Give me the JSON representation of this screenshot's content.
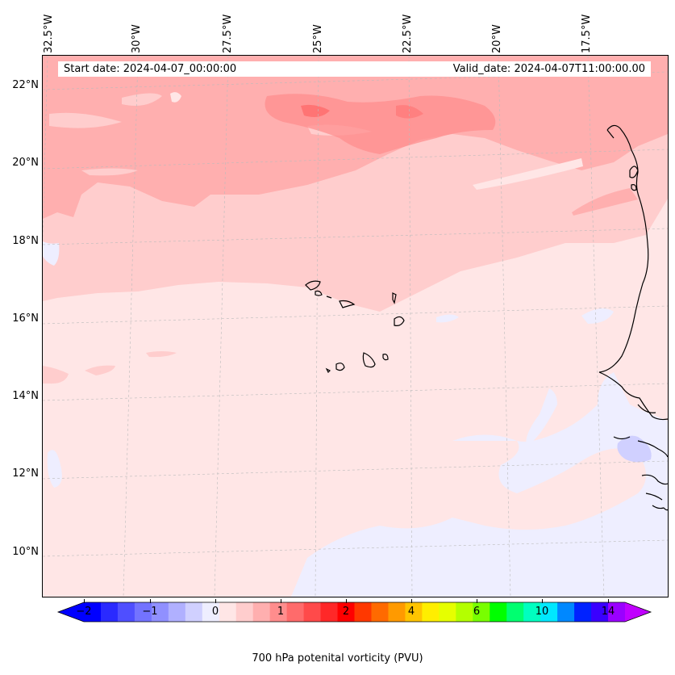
{
  "header": {
    "start_date": "Start date: 2024-04-07_00:00:00",
    "valid_date": "Valid_date: 2024-04-07T11:00:00.00"
  },
  "axes": {
    "lon_labels": [
      "32.5°W",
      "30°W",
      "27.5°W",
      "25°W",
      "22.5°W",
      "20°W",
      "17.5°W"
    ],
    "lat_labels": [
      "22°N",
      "20°N",
      "18°N",
      "16°N",
      "14°N",
      "12°N",
      "10°N"
    ]
  },
  "colorbar": {
    "title": "700 hPa potenital vorticity (PVU)",
    "tick_labels": [
      "−2",
      "−1",
      "0",
      "1",
      "2",
      "4",
      "6",
      "10",
      "14"
    ],
    "colors": [
      "#0000ff",
      "#2a2aff",
      "#4f4fff",
      "#7373ff",
      "#9090ff",
      "#b0b0ff",
      "#d0d0ff",
      "#eeeeff",
      "#ffe6e6",
      "#ffcdcd",
      "#ffafaf",
      "#ff8d8d",
      "#ff6b6b",
      "#ff4a4a",
      "#ff2828",
      "#ff0000",
      "#ff3800",
      "#ff6a00",
      "#ff9a00",
      "#ffc400",
      "#ffee00",
      "#e6ff00",
      "#b4ff00",
      "#78ff00",
      "#00ff00",
      "#00ff70",
      "#00ffc0",
      "#00e8ff",
      "#0088ff",
      "#0022ff",
      "#3a00ff",
      "#9a00ff"
    ],
    "extend_low_color": "#0000ff",
    "extend_high_color": "#c000ff"
  },
  "palette": {
    "light_pink": "#ffe6e6",
    "pink": "#ffcdcd",
    "salmon": "#ffafaf",
    "red_core": "#ff8d8d",
    "light_blue": "#eeeeff",
    "mid_blue": "#d0d0ff"
  }
}
